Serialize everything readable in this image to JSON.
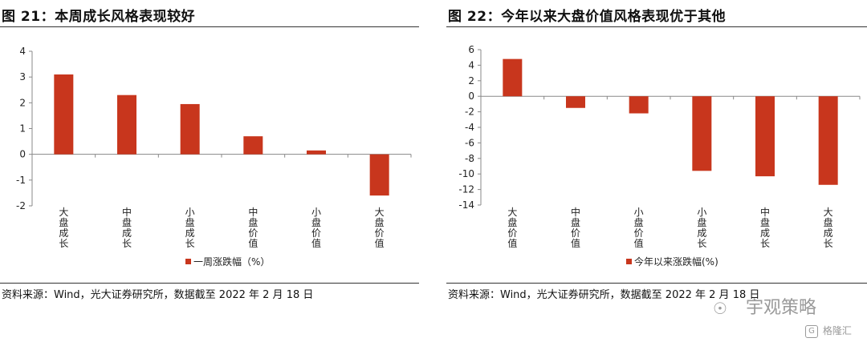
{
  "colors": {
    "bar": "#c8361d",
    "axis": "#888888",
    "text": "#222222"
  },
  "watermark": {
    "icon": "wechat-icon",
    "text": "宇观策略"
  },
  "brand": {
    "icon": "gelonghui-icon",
    "text": "格隆汇"
  },
  "chart_data": [
    {
      "type": "bar",
      "title": "图 21：本周成长风格表现较好",
      "categories": [
        "大盘成长",
        "中盘成长",
        "小盘成长",
        "中盘价值",
        "小盘价值",
        "大盘价值"
      ],
      "series": [
        {
          "name": "一周涨跌幅（%）",
          "values": [
            3.1,
            2.3,
            1.95,
            0.7,
            0.15,
            -1.6
          ]
        }
      ],
      "ylim": [
        -2,
        4
      ],
      "yticks": [
        4,
        3,
        2,
        1,
        0,
        -1,
        -2
      ],
      "ytick_labels": [
        "4",
        "3",
        "2",
        "1",
        "0",
        "-1",
        "-2"
      ],
      "legend": "bottom-center",
      "grid": false,
      "source": "资料来源：Wind，光大证券研究所，数据截至 2022 年 2 月 18 日"
    },
    {
      "type": "bar",
      "title": "图 22：今年以来大盘价值风格表现优于其他",
      "categories": [
        "大盘价值",
        "中盘价值",
        "小盘价值",
        "小盘成长",
        "中盘成长",
        "大盘成长"
      ],
      "series": [
        {
          "name": "今年以来涨跌幅(%)",
          "values": [
            4.8,
            -1.5,
            -2.2,
            -9.6,
            -10.3,
            -11.4
          ]
        }
      ],
      "ylim": [
        -14,
        6
      ],
      "yticks": [
        6,
        4,
        2,
        0,
        -2,
        -4,
        -6,
        -8,
        -10,
        -12,
        -14
      ],
      "ytick_labels": [
        "6",
        "4",
        "2",
        "0",
        "-2",
        "-4",
        "-6",
        "-8",
        "-10",
        "-12",
        "-14"
      ],
      "legend": "bottom-center",
      "grid": false,
      "source": "资料来源：Wind，光大证券研究所，数据截至 2022 年 2 月 18 日"
    }
  ]
}
